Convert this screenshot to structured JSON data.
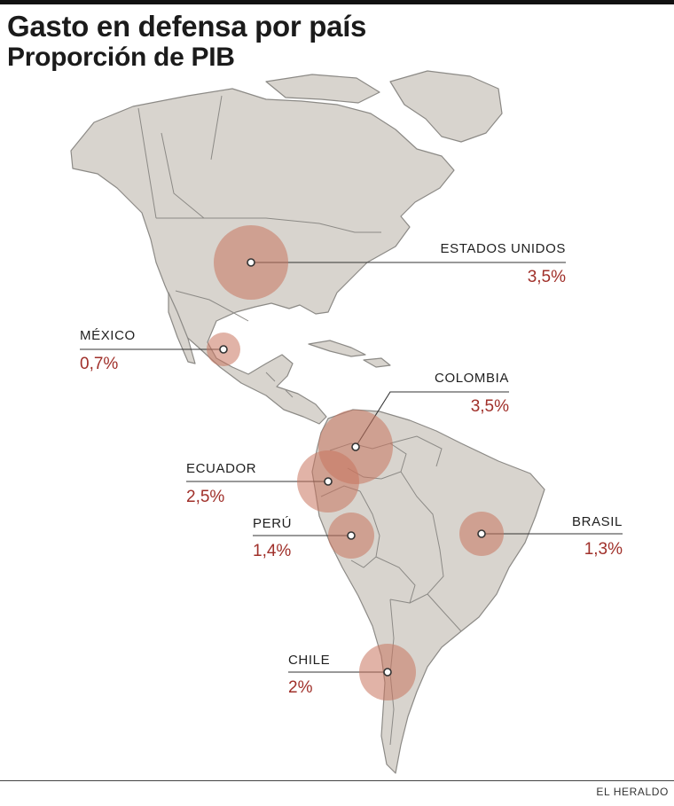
{
  "title": "Gasto en defensa por país",
  "subtitle": "Proporción de PIB",
  "source": "EL HERALDO",
  "colors": {
    "bubble": "#c9755e",
    "value_text": "#a0302a",
    "land": "#d8d4ce"
  },
  "countries": [
    {
      "name": "ESTADOS UNIDOS",
      "value": "3,5%",
      "share_pct": 3.5
    },
    {
      "name": "MÉXICO",
      "value": "0,7%",
      "share_pct": 0.7
    },
    {
      "name": "COLOMBIA",
      "value": "3,5%",
      "share_pct": 3.5
    },
    {
      "name": "ECUADOR",
      "value": "2,5%",
      "share_pct": 2.5
    },
    {
      "name": "PERÚ",
      "value": "1,4%",
      "share_pct": 1.4
    },
    {
      "name": "BRASIL",
      "value": "1,3%",
      "share_pct": 1.3
    },
    {
      "name": "CHILE",
      "value": "2%",
      "share_pct": 2.0
    }
  ]
}
